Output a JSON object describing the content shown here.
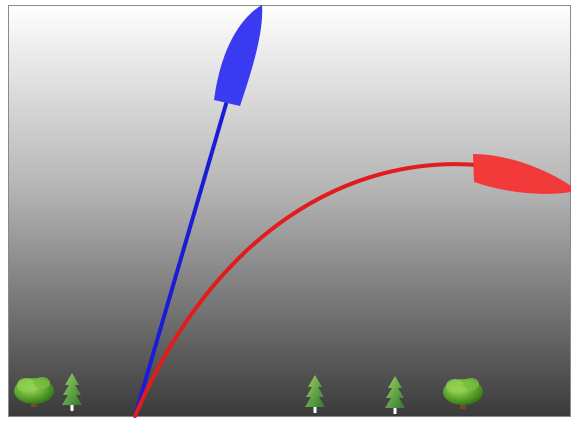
{
  "scene": {
    "sky_top_color": "#ffffff",
    "sky_bottom_color": "#3a3a3a",
    "frame_color": "#8a8a8a"
  },
  "paths": [
    {
      "name": "blue-trajectory",
      "color": "#1c1cd6"
    },
    {
      "name": "red-trajectory",
      "color": "#e01c1c"
    }
  ],
  "objects": [
    {
      "name": "blue-boat",
      "color": "#3a3af0"
    },
    {
      "name": "red-boat",
      "color": "#f23a3a"
    }
  ],
  "trees": [
    {
      "kind": "round-deciduous-tree-icon"
    },
    {
      "kind": "conifer-tree-icon"
    },
    {
      "kind": "conifer-tree-icon"
    },
    {
      "kind": "conifer-tree-icon"
    },
    {
      "kind": "round-deciduous-tree-icon"
    }
  ]
}
